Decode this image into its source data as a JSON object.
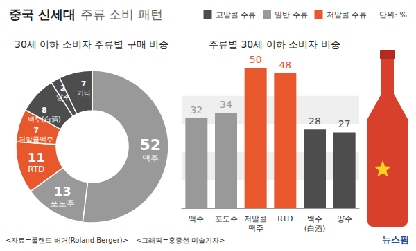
{
  "title": {
    "bold": "중국 신세대",
    "light": "주류 소비 패턴"
  },
  "unit_note": "단위: %",
  "source": "<자료=롤랜드 버거(Roland Berger)>",
  "credit": "<그래픽=홍종현 미술기자>",
  "logo": "뉴스핌",
  "chart_data": [
    {
      "type": "pie",
      "title": "30세 이하 소비자 주류별 구매 비중",
      "categories": [
        "맥주",
        "포도주",
        "RTD",
        "저알콜맥주",
        "백주(白酒)",
        "양주",
        "기타"
      ],
      "values": [
        52,
        13,
        11,
        7,
        8,
        2,
        7
      ],
      "colors": [
        "#999999",
        "#999999",
        "#e8582c",
        "#e8582c",
        "#4d4d4d",
        "#4d4d4d",
        "#4d4d4d"
      ],
      "data_labels": true
    },
    {
      "type": "bar",
      "title": "주류별 30세 이하 소비자 비중",
      "categories": [
        "맥주",
        "포도주",
        "저알콜맥주",
        "RTD",
        "백주(白酒)",
        "양주"
      ],
      "series": [
        {
          "name": "고알콜 주류",
          "color": "#4d4d4d",
          "values": [
            null,
            null,
            null,
            null,
            28,
            27
          ]
        },
        {
          "name": "일반 주류",
          "color": "#999999",
          "values": [
            32,
            34,
            null,
            null,
            null,
            null
          ]
        },
        {
          "name": "저알콜 주류",
          "color": "#e8582c",
          "values": [
            null,
            null,
            50,
            48,
            null,
            null
          ]
        }
      ],
      "ylim": [
        0,
        50
      ],
      "yticks": [
        0,
        10,
        20,
        30,
        40,
        50
      ],
      "grid": true,
      "tick_labels": "x",
      "legend": "top-right",
      "data_labels": true
    }
  ]
}
